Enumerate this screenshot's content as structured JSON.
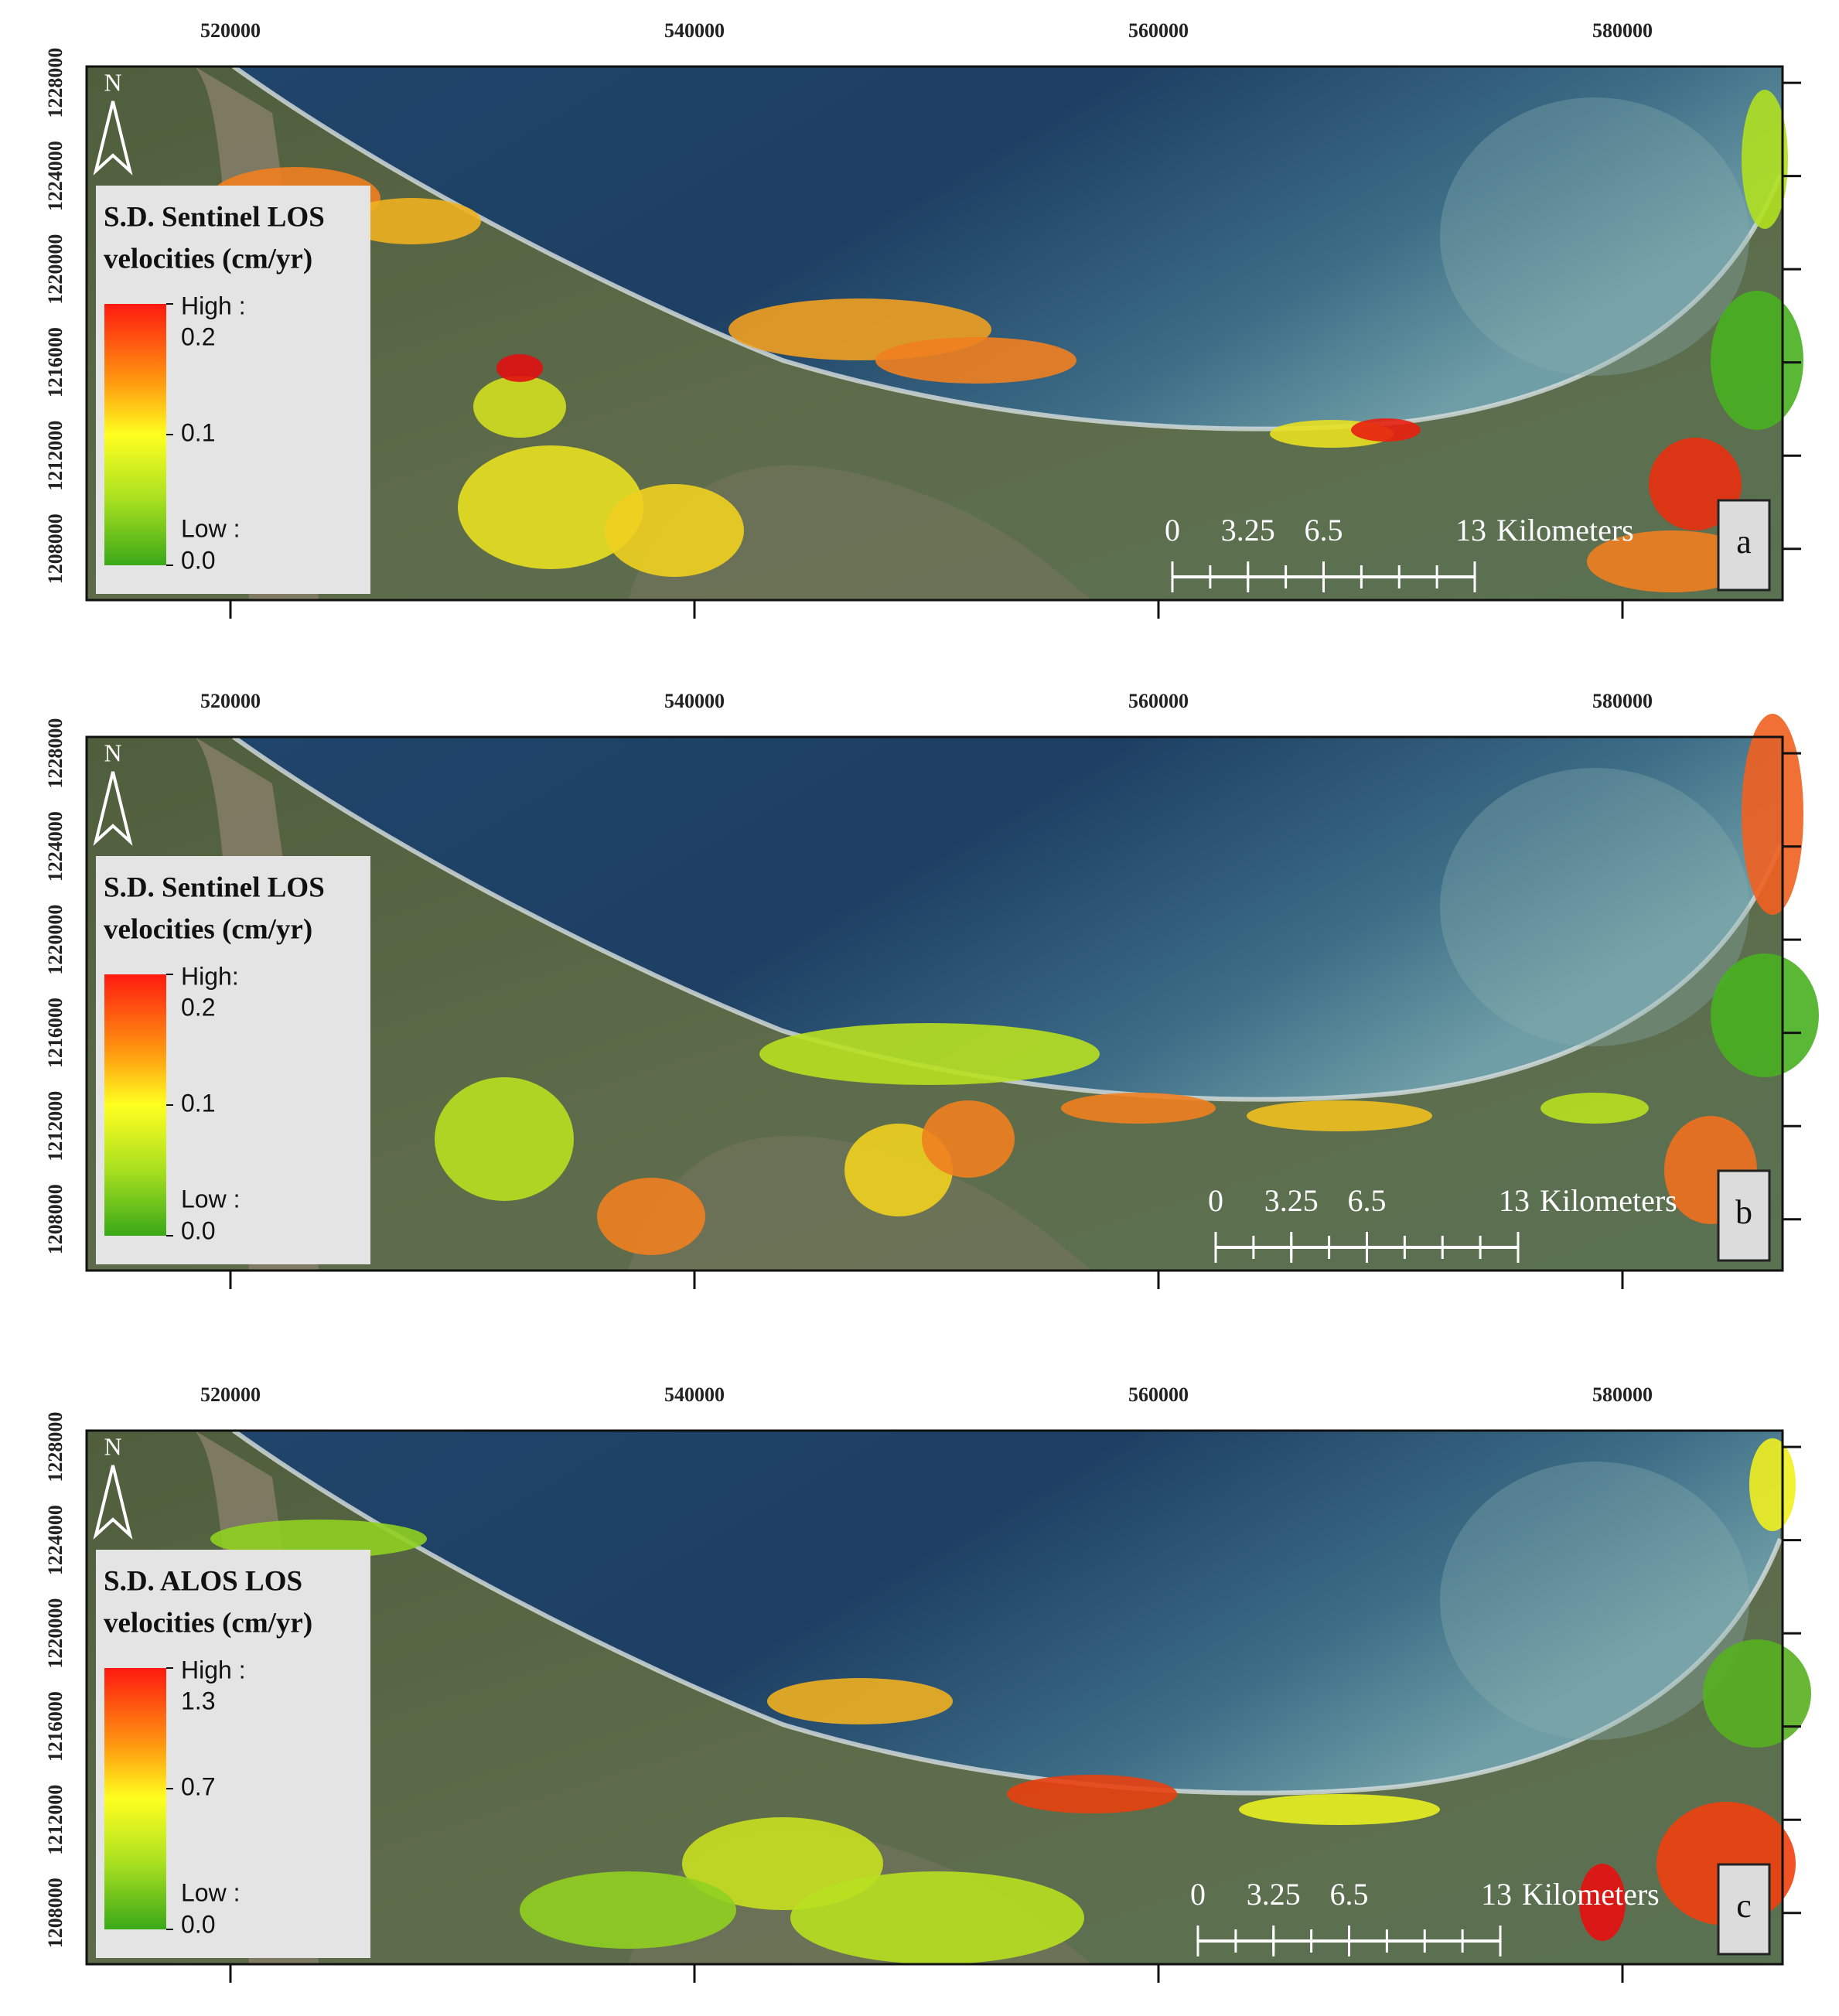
{
  "axes": {
    "xlim": [
      513800,
      586900
    ],
    "ylim": [
      1205800,
      1228700
    ],
    "xticks": [
      520000,
      540000,
      560000,
      580000
    ],
    "yticks": [
      1208000,
      1212000,
      1216000,
      1220000,
      1224000,
      1228000
    ]
  },
  "north": "N",
  "panels": [
    {
      "label": "a",
      "legend": {
        "title": [
          "S.D. Sentinel LOS",
          "velocities (cm/yr)"
        ],
        "high": "High :",
        "low": "Low :",
        "values": [
          0.2,
          0.1,
          {
            "value": 0,
            "label": "0.0"
          }
        ]
      },
      "scale_bar": {
        "ticks": [
          0,
          3.25,
          6.5,
          13
        ],
        "unit": "Kilometers"
      }
    },
    {
      "label": "b",
      "legend": {
        "title": [
          "S.D. Sentinel LOS",
          "velocities (cm/yr)"
        ],
        "high": "High:",
        "low": "Low :",
        "values": [
          0.2,
          0.1,
          {
            "value": 0,
            "label": "0.0"
          }
        ]
      },
      "scale_bar": {
        "ticks": [
          0,
          3.25,
          6.5,
          13
        ],
        "unit": "Kilometers"
      }
    },
    {
      "label": "c",
      "legend": {
        "title": [
          "S.D. ALOS LOS",
          "velocities (cm/yr)"
        ],
        "high": "High :",
        "low": "Low :",
        "values": [
          1.3,
          0.7,
          {
            "value": 0,
            "label": "0.0"
          }
        ]
      },
      "scale_bar": {
        "ticks": [
          0,
          3.25,
          6.5,
          13
        ],
        "unit": "Kilometers"
      }
    }
  ]
}
